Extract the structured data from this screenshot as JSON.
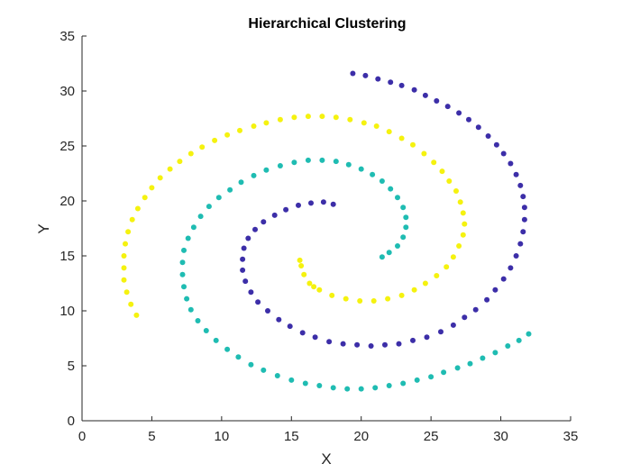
{
  "chart_data": {
    "type": "scatter",
    "title": "Hierarchical Clustering",
    "xlabel": "X",
    "ylabel": "Y",
    "xlim": [
      0,
      35
    ],
    "ylim": [
      0,
      35
    ],
    "xticks": [
      0,
      5,
      10,
      15,
      20,
      25,
      30,
      35
    ],
    "yticks": [
      0,
      5,
      10,
      15,
      20,
      25,
      30,
      35
    ],
    "grid": false,
    "box": "open",
    "colors": {
      "cluster_1": "#3c2ea8",
      "cluster_2": "#1fbcb2",
      "cluster_3": "#f5f20f"
    },
    "series": [
      {
        "color": "#3c2ea8",
        "points": [
          [
            19.4,
            31.6
          ],
          [
            20.3,
            31.4
          ],
          [
            21.2,
            31.1
          ],
          [
            22.1,
            30.8
          ],
          [
            22.9,
            30.5
          ],
          [
            23.8,
            30.1
          ],
          [
            24.6,
            29.6
          ],
          [
            25.4,
            29.1
          ],
          [
            26.2,
            28.6
          ],
          [
            27.0,
            28.0
          ],
          [
            27.7,
            27.4
          ],
          [
            28.4,
            26.7
          ],
          [
            29.1,
            25.9
          ],
          [
            29.7,
            25.1
          ],
          [
            30.2,
            24.3
          ],
          [
            30.7,
            23.4
          ],
          [
            31.1,
            22.4
          ],
          [
            31.4,
            21.4
          ],
          [
            31.6,
            20.4
          ],
          [
            31.7,
            19.4
          ],
          [
            31.7,
            18.3
          ],
          [
            31.6,
            17.2
          ],
          [
            31.4,
            16.1
          ],
          [
            31.1,
            15.0
          ],
          [
            30.7,
            13.9
          ],
          [
            30.2,
            12.9
          ],
          [
            29.6,
            11.9
          ],
          [
            29.0,
            11.0
          ],
          [
            28.2,
            10.1
          ],
          [
            27.4,
            9.4
          ],
          [
            26.6,
            8.7
          ],
          [
            25.7,
            8.1
          ],
          [
            24.7,
            7.6
          ],
          [
            23.7,
            7.3
          ],
          [
            22.7,
            7.0
          ],
          [
            21.7,
            6.9
          ],
          [
            20.7,
            6.8
          ],
          [
            19.7,
            6.9
          ],
          [
            18.7,
            7.0
          ],
          [
            17.7,
            7.2
          ],
          [
            16.7,
            7.6
          ],
          [
            15.8,
            8.0
          ],
          [
            14.9,
            8.6
          ],
          [
            14.1,
            9.2
          ],
          [
            13.3,
            10.0
          ],
          [
            12.6,
            10.8
          ],
          [
            12.1,
            11.7
          ],
          [
            11.7,
            12.7
          ],
          [
            11.5,
            13.7
          ],
          [
            11.5,
            14.7
          ],
          [
            11.6,
            15.7
          ],
          [
            11.9,
            16.6
          ],
          [
            12.4,
            17.4
          ],
          [
            13.0,
            18.1
          ],
          [
            13.8,
            18.7
          ],
          [
            14.6,
            19.2
          ],
          [
            15.5,
            19.6
          ],
          [
            16.4,
            19.8
          ],
          [
            17.3,
            19.9
          ],
          [
            18.0,
            19.7
          ]
        ]
      },
      {
        "color": "#1fbcb2",
        "points": [
          [
            32.0,
            7.9
          ],
          [
            31.3,
            7.3
          ],
          [
            30.5,
            6.8
          ],
          [
            29.6,
            6.2
          ],
          [
            28.7,
            5.7
          ],
          [
            27.8,
            5.2
          ],
          [
            26.9,
            4.8
          ],
          [
            25.9,
            4.4
          ],
          [
            25.0,
            4.0
          ],
          [
            24.0,
            3.7
          ],
          [
            23.0,
            3.4
          ],
          [
            22.0,
            3.2
          ],
          [
            21.0,
            3.0
          ],
          [
            20.0,
            2.9
          ],
          [
            19.0,
            2.9
          ],
          [
            18.0,
            3.0
          ],
          [
            17.0,
            3.2
          ],
          [
            16.0,
            3.4
          ],
          [
            15.0,
            3.7
          ],
          [
            14.0,
            4.1
          ],
          [
            13.0,
            4.6
          ],
          [
            12.1,
            5.1
          ],
          [
            11.2,
            5.8
          ],
          [
            10.4,
            6.5
          ],
          [
            9.6,
            7.3
          ],
          [
            8.9,
            8.2
          ],
          [
            8.3,
            9.1
          ],
          [
            7.8,
            10.1
          ],
          [
            7.5,
            11.1
          ],
          [
            7.3,
            12.2
          ],
          [
            7.2,
            13.3
          ],
          [
            7.2,
            14.4
          ],
          [
            7.3,
            15.5
          ],
          [
            7.6,
            16.6
          ],
          [
            8.0,
            17.6
          ],
          [
            8.5,
            18.6
          ],
          [
            9.1,
            19.5
          ],
          [
            9.8,
            20.3
          ],
          [
            10.6,
            21.0
          ],
          [
            11.4,
            21.7
          ],
          [
            12.3,
            22.3
          ],
          [
            13.2,
            22.8
          ],
          [
            14.2,
            23.2
          ],
          [
            15.2,
            23.5
          ],
          [
            16.2,
            23.7
          ],
          [
            17.2,
            23.7
          ],
          [
            18.2,
            23.6
          ],
          [
            19.1,
            23.3
          ],
          [
            20.0,
            22.9
          ],
          [
            20.8,
            22.4
          ],
          [
            21.5,
            21.8
          ],
          [
            22.1,
            21.1
          ],
          [
            22.6,
            20.3
          ],
          [
            23.0,
            19.4
          ],
          [
            23.2,
            18.5
          ],
          [
            23.2,
            17.6
          ],
          [
            23.0,
            16.7
          ],
          [
            22.6,
            15.9
          ],
          [
            22.0,
            15.3
          ],
          [
            21.5,
            14.9
          ]
        ]
      },
      {
        "color": "#f5f20f",
        "points": [
          [
            3.9,
            9.6
          ],
          [
            3.5,
            10.6
          ],
          [
            3.2,
            11.7
          ],
          [
            3.0,
            12.8
          ],
          [
            3.0,
            13.9
          ],
          [
            3.0,
            15.0
          ],
          [
            3.1,
            16.1
          ],
          [
            3.3,
            17.2
          ],
          [
            3.6,
            18.3
          ],
          [
            4.0,
            19.3
          ],
          [
            4.5,
            20.3
          ],
          [
            5.0,
            21.2
          ],
          [
            5.6,
            22.1
          ],
          [
            6.3,
            22.9
          ],
          [
            7.0,
            23.6
          ],
          [
            7.8,
            24.3
          ],
          [
            8.6,
            24.9
          ],
          [
            9.5,
            25.5
          ],
          [
            10.4,
            26.0
          ],
          [
            11.3,
            26.4
          ],
          [
            12.3,
            26.8
          ],
          [
            13.2,
            27.1
          ],
          [
            14.2,
            27.4
          ],
          [
            15.2,
            27.6
          ],
          [
            16.2,
            27.7
          ],
          [
            17.2,
            27.7
          ],
          [
            18.2,
            27.6
          ],
          [
            19.2,
            27.4
          ],
          [
            20.2,
            27.1
          ],
          [
            21.1,
            26.8
          ],
          [
            22.0,
            26.3
          ],
          [
            22.9,
            25.7
          ],
          [
            23.7,
            25.1
          ],
          [
            24.5,
            24.3
          ],
          [
            25.2,
            23.5
          ],
          [
            25.8,
            22.7
          ],
          [
            26.3,
            21.8
          ],
          [
            26.8,
            20.9
          ],
          [
            27.1,
            19.9
          ],
          [
            27.3,
            18.9
          ],
          [
            27.4,
            17.9
          ],
          [
            27.3,
            16.9
          ],
          [
            27.0,
            15.9
          ],
          [
            26.6,
            14.9
          ],
          [
            26.1,
            14.0
          ],
          [
            25.4,
            13.2
          ],
          [
            24.6,
            12.5
          ],
          [
            23.8,
            11.9
          ],
          [
            22.9,
            11.4
          ],
          [
            21.9,
            11.1
          ],
          [
            20.9,
            10.9
          ],
          [
            19.9,
            10.9
          ],
          [
            18.9,
            11.1
          ],
          [
            17.9,
            11.4
          ],
          [
            17.0,
            11.9
          ],
          [
            16.3,
            12.5
          ],
          [
            15.9,
            13.3
          ],
          [
            15.7,
            14.1
          ],
          [
            15.6,
            14.6
          ],
          [
            16.6,
            12.2
          ]
        ]
      }
    ]
  }
}
